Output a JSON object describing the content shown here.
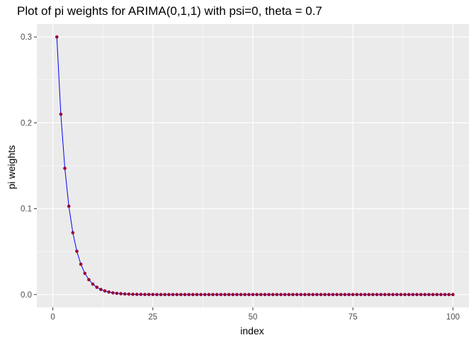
{
  "chart_data": {
    "type": "line",
    "title": "Plot of pi weights for ARIMA(0,1,1) with psi=0, theta = 0.7",
    "xlabel": "index",
    "ylabel": "pi weights",
    "xlim": [
      -4,
      104
    ],
    "ylim": [
      -0.015,
      0.315
    ],
    "x_ticks": [
      0,
      25,
      50,
      75,
      100
    ],
    "x_tick_labels": [
      "0",
      "25",
      "50",
      "75",
      "100"
    ],
    "y_ticks": [
      0.0,
      0.1,
      0.2,
      0.3
    ],
    "y_tick_labels": [
      "0.0",
      "0.1",
      "0.2",
      "0.3"
    ],
    "grid": true,
    "series": [
      {
        "line_color": "#0000ff",
        "point_color": "#990033",
        "x": [
          1,
          2,
          3,
          4,
          5,
          6,
          7,
          8,
          9,
          10,
          11,
          12,
          13,
          14,
          15,
          16,
          17,
          18,
          19,
          20,
          21,
          22,
          23,
          24,
          25,
          26,
          27,
          28,
          29,
          30,
          31,
          32,
          33,
          34,
          35,
          36,
          37,
          38,
          39,
          40,
          41,
          42,
          43,
          44,
          45,
          46,
          47,
          48,
          49,
          50,
          51,
          52,
          53,
          54,
          55,
          56,
          57,
          58,
          59,
          60,
          61,
          62,
          63,
          64,
          65,
          66,
          67,
          68,
          69,
          70,
          71,
          72,
          73,
          74,
          75,
          76,
          77,
          78,
          79,
          80,
          81,
          82,
          83,
          84,
          85,
          86,
          87,
          88,
          89,
          90,
          91,
          92,
          93,
          94,
          95,
          96,
          97,
          98,
          99,
          100
        ],
        "values": [
          0.3,
          0.21,
          0.147,
          0.1029,
          0.072,
          0.0504,
          0.0353,
          0.0247,
          0.0173,
          0.0121,
          0.0085,
          0.0059,
          0.0042,
          0.0029,
          0.002,
          0.0014,
          0.001,
          0.0007,
          0.0005,
          0.0003,
          0.0002,
          0.0002,
          0.0001,
          0.0001,
          0.0001,
          0,
          0,
          0,
          0,
          0,
          0,
          0,
          0,
          0,
          0,
          0,
          0,
          0,
          0,
          0,
          0,
          0,
          0,
          0,
          0,
          0,
          0,
          0,
          0,
          0,
          0,
          0,
          0,
          0,
          0,
          0,
          0,
          0,
          0,
          0,
          0,
          0,
          0,
          0,
          0,
          0,
          0,
          0,
          0,
          0,
          0,
          0,
          0,
          0,
          0,
          0,
          0,
          0,
          0,
          0,
          0,
          0,
          0,
          0,
          0,
          0,
          0,
          0,
          0,
          0,
          0,
          0,
          0,
          0,
          0,
          0,
          0,
          0,
          0,
          0
        ]
      }
    ]
  }
}
